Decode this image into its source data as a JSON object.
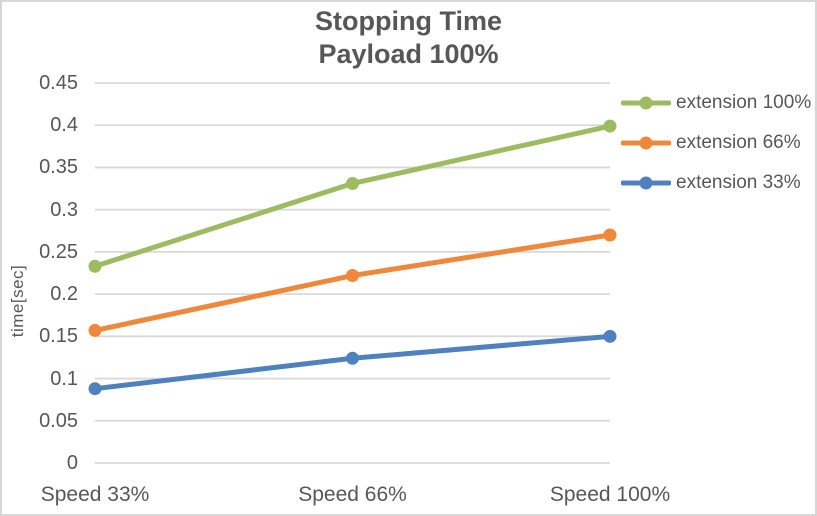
{
  "chart_data": {
    "type": "line",
    "title": "Stopping Time",
    "subtitle": "Payload 100%",
    "ylabel": "time[sec]",
    "xlabel": "",
    "ylim": [
      0,
      0.45
    ],
    "y_ticks": [
      0.45,
      0.4,
      0.35,
      0.3,
      0.25,
      0.2,
      0.15,
      0.1,
      0.05,
      0
    ],
    "y_tick_labels": [
      "0.45",
      "0.4",
      "0.35",
      "0.3",
      "0.25",
      "0.2",
      "0.15",
      "0.1",
      "0.05",
      "0"
    ],
    "categories": [
      "Speed 33%",
      "Speed 66%",
      "Speed 100%"
    ],
    "series": [
      {
        "name": "extension 100%",
        "values": [
          0.233,
          0.331,
          0.399
        ],
        "color": "#9DBC61"
      },
      {
        "name": "extension 66%",
        "values": [
          0.157,
          0.222,
          0.27
        ],
        "color": "#F0883C"
      },
      {
        "name": "extension 33%",
        "values": [
          0.088,
          0.124,
          0.15
        ],
        "color": "#4E81BD"
      }
    ],
    "grid": true,
    "gridline_color": "#D9D9D9",
    "legend_position": "right",
    "text_color": "#575757",
    "marker": "circle"
  }
}
